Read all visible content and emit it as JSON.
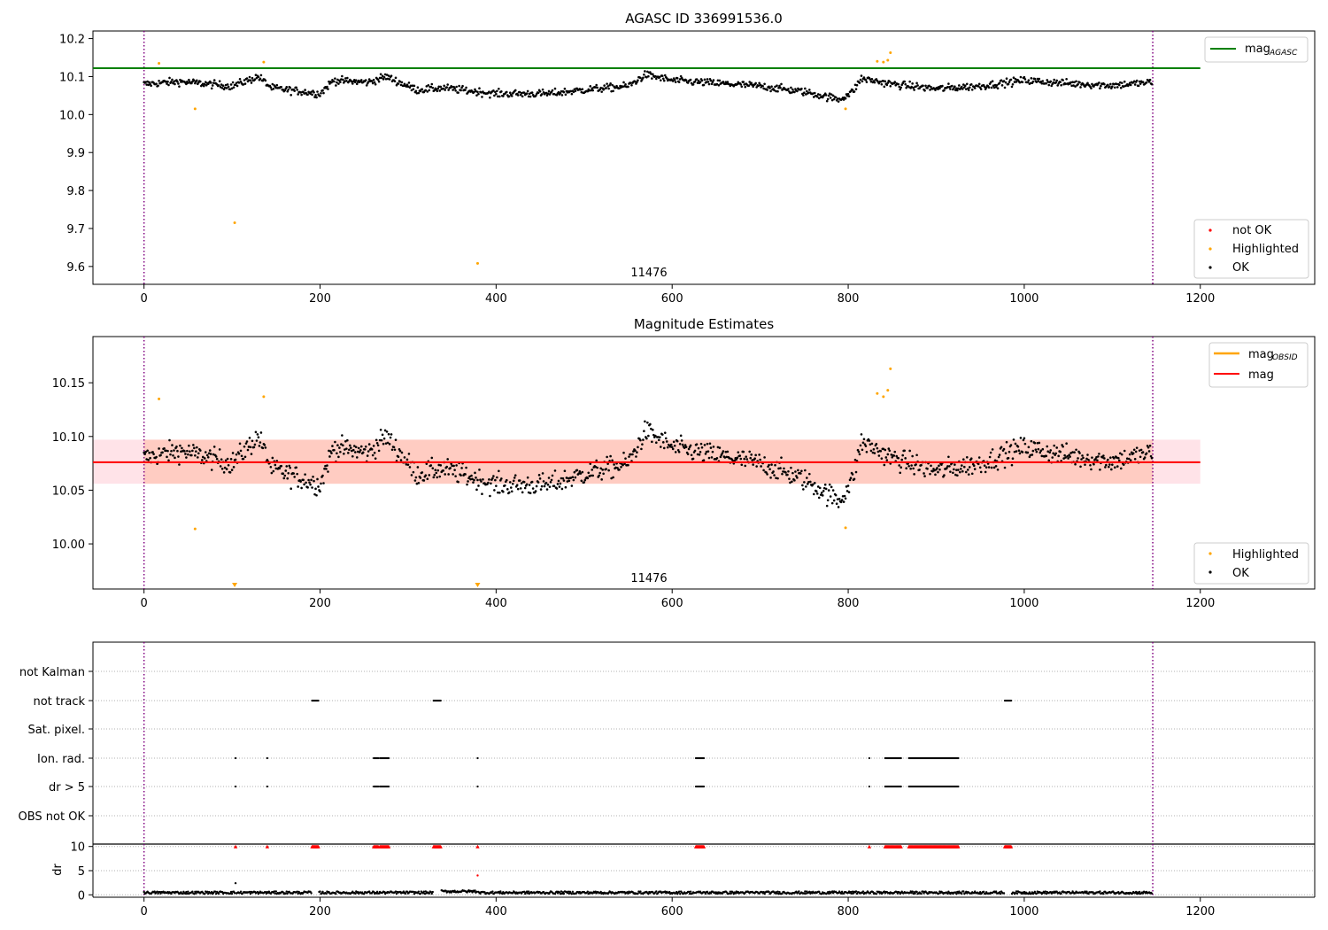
{
  "chart_data": [
    {
      "panel": "top",
      "type": "scatter",
      "title": "AGASC ID 336991536.0",
      "xlim": [
        -58,
        1330
      ],
      "ylim": [
        9.553,
        10.22
      ],
      "xticks": [
        0,
        200,
        400,
        600,
        800,
        1000,
        1200
      ],
      "yticks": [
        9.6,
        9.7,
        9.8,
        9.9,
        10.0,
        10.1,
        10.2
      ],
      "ytick_labels": [
        "9.6",
        "9.7",
        "9.8",
        "9.9",
        "10.0",
        "10.1",
        "10.2"
      ],
      "vlines": [
        0,
        1146
      ],
      "hline": {
        "y": 10.122,
        "x_range": [
          0,
          1200
        ],
        "color": "#008000"
      },
      "annotation": {
        "text": "11476",
        "x": 571,
        "y": 9.58
      },
      "legend_lines": [
        {
          "label": "mag",
          "sub": "AGASC",
          "color": "#008000"
        }
      ],
      "legend_points": [
        {
          "label": "not OK",
          "color": "#ff0000"
        },
        {
          "label": "Highlighted",
          "color": "#ffa500"
        },
        {
          "label": "OK",
          "color": "#000000"
        }
      ],
      "ok_series": {
        "color": "#000000",
        "n": 1146,
        "baseline_segments": [
          [
            0,
            10.08
          ],
          [
            40,
            10.087
          ],
          [
            100,
            10.075
          ],
          [
            130,
            10.1
          ],
          [
            145,
            10.07
          ],
          [
            200,
            10.055
          ],
          [
            215,
            10.09
          ],
          [
            255,
            10.085
          ],
          [
            275,
            10.1
          ],
          [
            310,
            10.065
          ],
          [
            340,
            10.07
          ],
          [
            400,
            10.055
          ],
          [
            460,
            10.055
          ],
          [
            500,
            10.065
          ],
          [
            550,
            10.075
          ],
          [
            570,
            10.105
          ],
          [
            600,
            10.09
          ],
          [
            700,
            10.075
          ],
          [
            750,
            10.06
          ],
          [
            790,
            10.04
          ],
          [
            805,
            10.06
          ],
          [
            815,
            10.095
          ],
          [
            850,
            10.08
          ],
          [
            900,
            10.068
          ],
          [
            950,
            10.075
          ],
          [
            1000,
            10.09
          ],
          [
            1050,
            10.082
          ],
          [
            1100,
            10.077
          ],
          [
            1146,
            10.085
          ]
        ],
        "scatter": 0.018
      },
      "highlighted": [
        [
          17,
          10.135
        ],
        [
          58,
          10.015
        ],
        [
          103,
          9.715
        ],
        [
          136,
          10.138
        ],
        [
          379,
          9.608
        ],
        [
          797,
          10.015
        ],
        [
          833,
          10.14
        ],
        [
          840,
          10.138
        ],
        [
          845,
          10.143
        ],
        [
          848,
          10.163
        ]
      ]
    },
    {
      "panel": "middle",
      "type": "scatter",
      "title": "Magnitude Estimates",
      "xlim": [
        -58,
        1330
      ],
      "ylim": [
        9.958,
        10.193
      ],
      "xticks": [
        0,
        200,
        400,
        600,
        800,
        1000,
        1200
      ],
      "yticks": [
        10.0,
        10.05,
        10.1,
        10.15
      ],
      "ytick_labels": [
        "10.00",
        "10.05",
        "10.10",
        "10.15"
      ],
      "vlines": [
        0,
        1146
      ],
      "mean_line": {
        "y": 10.076,
        "x_range": [
          -58,
          1200
        ],
        "color": "#ff0000"
      },
      "band_outer": {
        "y_range": [
          10.056,
          10.097
        ],
        "x_range": [
          -58,
          1200
        ],
        "color": "#ffc0cb"
      },
      "band_inner": {
        "y_range": [
          10.056,
          10.097
        ],
        "x_range": [
          0,
          1146
        ],
        "color": "#ffa07a"
      },
      "annotation": {
        "text": "11476",
        "x": 571,
        "y": 9.968
      },
      "legend_lines": [
        {
          "label": "mag",
          "sub": "OBSID",
          "color": "#ffa500"
        },
        {
          "label": "mag",
          "sub": "",
          "color": "#ff0000"
        }
      ],
      "legend_points": [
        {
          "label": "Highlighted",
          "color": "#ffa500"
        },
        {
          "label": "OK",
          "color": "#000000"
        }
      ],
      "highlighted": [
        [
          17,
          10.135
        ],
        [
          58,
          10.014
        ],
        [
          136,
          10.137
        ],
        [
          797,
          10.015
        ],
        [
          833,
          10.14
        ],
        [
          840,
          10.137
        ],
        [
          845,
          10.143
        ],
        [
          848,
          10.163
        ]
      ],
      "offscale_markers": [
        103,
        379
      ]
    },
    {
      "panel": "flags",
      "type": "scatter",
      "xlim": [
        -58,
        1330
      ],
      "xticks": [
        0,
        200,
        400,
        600,
        800,
        1000,
        1200
      ],
      "vlines": [
        0,
        1146
      ],
      "categories": [
        "not Kalman",
        "not track",
        "Sat. pixel.",
        "Ion. rad.",
        "dr > 5",
        "OBS not OK"
      ],
      "flag_ranges": {
        "not Kalman": [],
        "not track": [
          [
            191,
            198
          ],
          [
            329,
            337
          ],
          [
            978,
            985
          ]
        ],
        "Sat. pixel.": [],
        "Ion. rad.": [
          [
            104,
            104
          ],
          [
            140,
            140
          ],
          [
            261,
            266
          ],
          [
            268,
            278
          ],
          [
            379,
            379
          ],
          [
            627,
            636
          ],
          [
            824,
            824
          ],
          [
            842,
            860
          ],
          [
            869,
            925
          ]
        ],
        "dr > 5": [
          [
            104,
            104
          ],
          [
            140,
            140
          ],
          [
            261,
            266
          ],
          [
            268,
            278
          ],
          [
            379,
            379
          ],
          [
            627,
            636
          ],
          [
            824,
            824
          ],
          [
            842,
            860
          ],
          [
            869,
            925
          ]
        ],
        "OBS not OK": []
      }
    },
    {
      "panel": "dr",
      "type": "scatter",
      "ylabel": "dr",
      "xlim": [
        -58,
        1330
      ],
      "ylim": [
        -0.5,
        10.5
      ],
      "yticks": [
        0,
        5,
        10
      ],
      "ytick_labels": [
        "0",
        "5",
        "10"
      ],
      "xticks": [
        0,
        200,
        400,
        600,
        800,
        1000,
        1200
      ],
      "vlines": [
        0,
        1146
      ],
      "capped_value": 10,
      "capped_ranges": [
        [
          104,
          104
        ],
        [
          140,
          140
        ],
        [
          191,
          198
        ],
        [
          261,
          266
        ],
        [
          268,
          278
        ],
        [
          329,
          337
        ],
        [
          379,
          379
        ],
        [
          627,
          636
        ],
        [
          824,
          824
        ],
        [
          842,
          860
        ],
        [
          869,
          925
        ],
        [
          978,
          985
        ]
      ],
      "isolated_points": [
        [
          104,
          2.4
        ],
        [
          379,
          4.0
        ]
      ],
      "gaps": [
        [
          191,
          198
        ],
        [
          329,
          337
        ],
        [
          978,
          985
        ]
      ],
      "baseline": 0.45
    }
  ]
}
